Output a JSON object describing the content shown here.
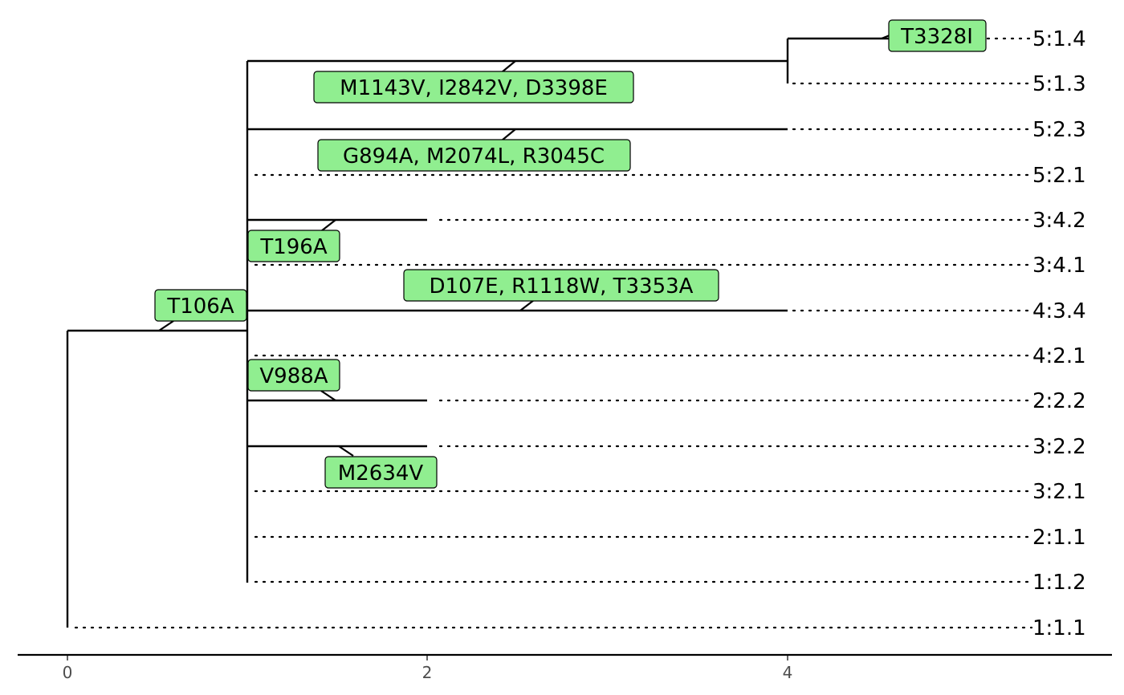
{
  "tree": {
    "tips": [
      "5:1.4",
      "5:1.3",
      "5:2.3",
      "5:2.1",
      "3:4.2",
      "3:4.1",
      "4:3.4",
      "4:2.1",
      "2:2.2",
      "3:2.2",
      "3:2.1",
      "2:1.1",
      "1:1.2",
      "1:1.1"
    ],
    "mutations": [
      "T3328I",
      "M1143V, I2842V, D3398E",
      "G894A, M2074L, R3045C",
      "T196A",
      "D107E, R1118W, T3353A",
      "T106A",
      "V988A",
      "M2634V"
    ],
    "axis": {
      "ticks": [
        "0",
        "2",
        "4"
      ],
      "range": [
        0,
        4
      ]
    }
  },
  "colors": {
    "label_fill": "#90ee90",
    "line": "#000000",
    "tick_text": "#4d4d4d"
  }
}
